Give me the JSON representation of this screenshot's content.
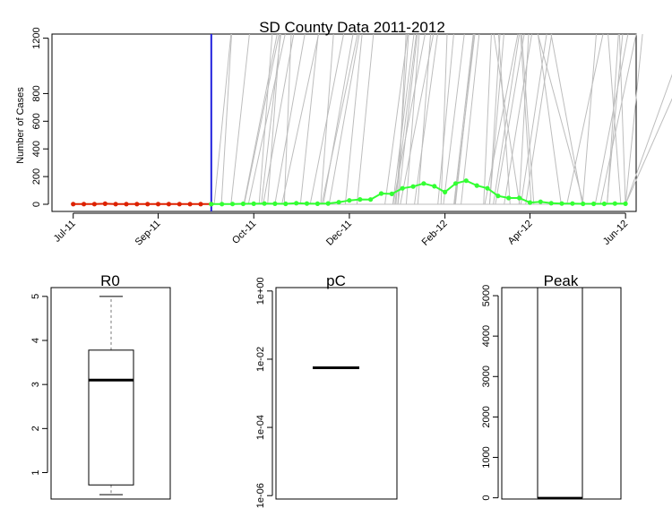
{
  "chart_data": [
    {
      "type": "line",
      "title": "SD County Data 2011-2012",
      "ylabel": "Number of Cases",
      "xlabel": "",
      "x_tick_labels": [
        "Jul-11",
        "Sep-11",
        "Oct-11",
        "Dec-11",
        "Feb-12",
        "Apr-12",
        "Jun-12"
      ],
      "y_ticks": [
        0,
        200,
        400,
        600,
        800,
        1200
      ],
      "ylim": [
        0,
        1230
      ],
      "x_weeks_range": [
        -2,
        53
      ],
      "cutoff_week": 13,
      "grid": false,
      "series": [
        {
          "color": "#dd2200",
          "x": [
            0,
            1,
            2,
            3,
            4,
            5,
            6,
            7,
            8,
            9,
            10,
            11,
            12,
            13
          ],
          "values": [
            1,
            1,
            1,
            4,
            1,
            1,
            1,
            1,
            1,
            1,
            1,
            1,
            1,
            1
          ]
        },
        {
          "color": "#33ff33",
          "x": [
            13,
            14,
            15,
            16,
            17,
            18,
            19,
            20,
            21,
            22,
            23,
            24,
            25,
            26,
            27,
            28,
            29,
            30,
            31,
            32,
            33,
            34,
            35,
            36,
            37,
            38,
            39,
            40,
            41,
            42,
            43,
            44,
            45,
            46,
            47,
            48,
            49,
            50,
            51,
            52
          ],
          "values": [
            1,
            1,
            2,
            3,
            4,
            5,
            4,
            3,
            8,
            5,
            4,
            6,
            15,
            28,
            35,
            34,
            78,
            75,
            115,
            128,
            150,
            130,
            88,
            150,
            170,
            135,
            115,
            60,
            45,
            45,
            12,
            18,
            8,
            5,
            5,
            3,
            3,
            3,
            5,
            4
          ]
        }
      ],
      "vertical_line_color": "#2222dd",
      "simulation_line_color": "#bdbdbd"
    },
    {
      "type": "box",
      "title": "R0",
      "y_ticks": [
        1,
        2,
        3,
        4,
        5
      ],
      "ylim": [
        0.4,
        5.2
      ],
      "box": {
        "min": 0.5,
        "q1": 0.72,
        "median": 3.1,
        "q3": 3.78,
        "max": 5.0
      }
    },
    {
      "type": "box",
      "title": "pC",
      "log_scale": true,
      "y_tick_exponents": [
        0,
        -2,
        -4,
        -6
      ],
      "y_tick_labels": [
        "1e+00",
        "1e-02",
        "1e-04",
        "1e-06"
      ],
      "ylim_exp": [
        -6.1,
        0.1
      ],
      "box": {
        "median_exp": -2.25,
        "q1_exp": -2.25,
        "q3_exp": -2.25
      }
    },
    {
      "type": "box",
      "title": "Peak",
      "y_ticks": [
        0,
        1000,
        2000,
        3000,
        4000,
        5000
      ],
      "ylim": [
        -30,
        5200
      ],
      "box": {
        "min": 0,
        "q1": 0,
        "median": 0,
        "q3": 5200,
        "max": 5200
      }
    }
  ]
}
